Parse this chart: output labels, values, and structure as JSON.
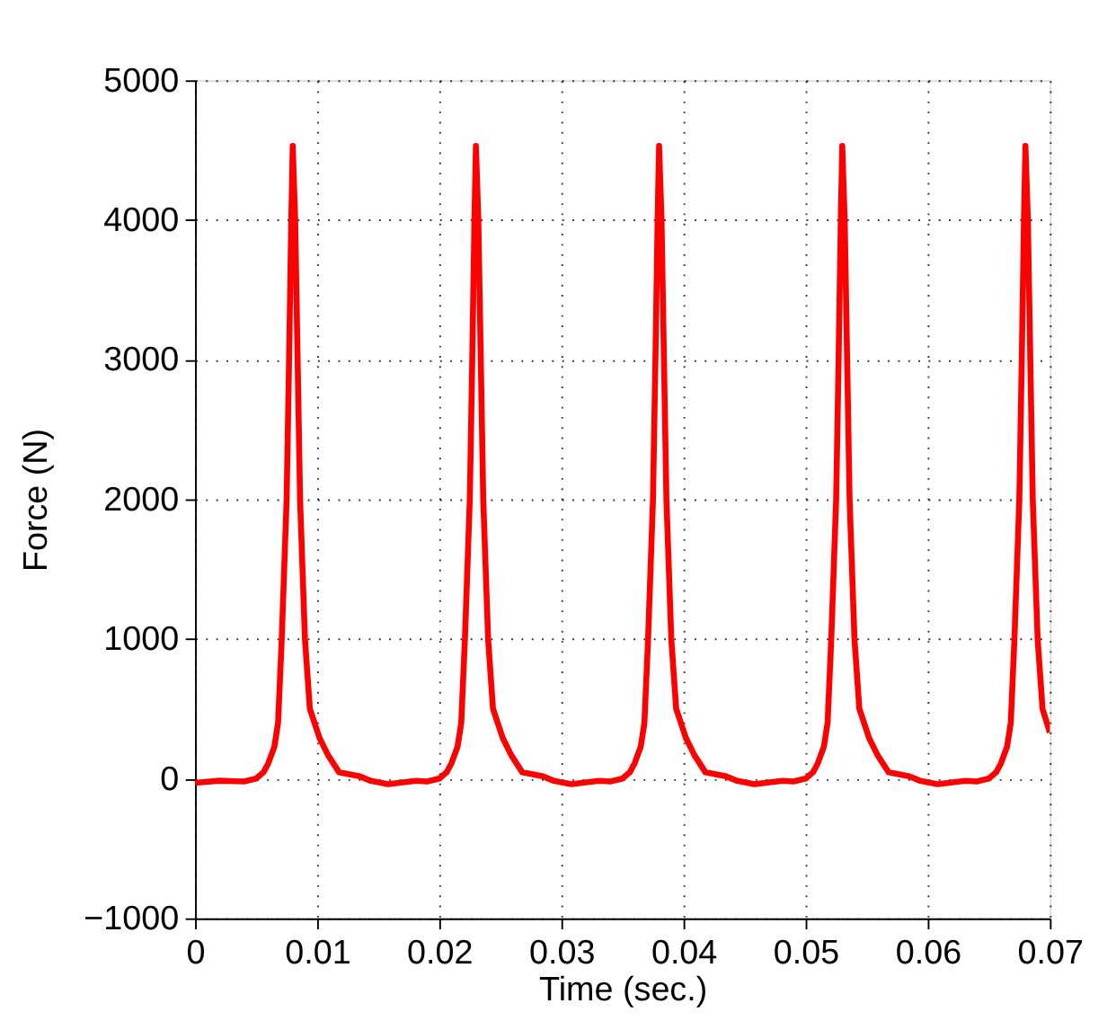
{
  "chart_data": {
    "type": "line",
    "xlabel": "Time (sec.)",
    "ylabel": "Force (N)",
    "xlim": [
      0,
      0.07
    ],
    "xticks": [
      0,
      0.01,
      0.02,
      0.03,
      0.04,
      0.05,
      0.06,
      0.07
    ],
    "ylim": [
      -1000,
      5000
    ],
    "yticks": [
      -1000,
      0,
      1000,
      2000,
      3000,
      4000,
      5000
    ],
    "grid": true,
    "line_style": "solid",
    "marker": "none",
    "series": [
      {
        "color": "#ff0000",
        "x": [
          0,
          0.002,
          0.004,
          0.005,
          0.0056,
          0.006,
          0.0065,
          0.0068,
          0.0071,
          0.0075,
          0.0077,
          0.00788,
          0.008,
          0.0082,
          0.0084,
          0.0086,
          0.009,
          0.0094,
          0.0102,
          0.0109,
          0.0118,
          0.0135,
          0.0144,
          0.0158,
          0.0181,
          0.019,
          0.02,
          0.0206,
          0.021,
          0.0215,
          0.0218,
          0.0221,
          0.0225,
          0.0227,
          0.02288,
          0.023,
          0.0232,
          0.0234,
          0.0236,
          0.024,
          0.0244,
          0.0252,
          0.0259,
          0.0268,
          0.0285,
          0.0294,
          0.0308,
          0.0331,
          0.034,
          0.035,
          0.0356,
          0.036,
          0.0365,
          0.0368,
          0.0371,
          0.0375,
          0.0377,
          0.03788,
          0.038,
          0.0382,
          0.0384,
          0.0386,
          0.039,
          0.0394,
          0.0402,
          0.0409,
          0.0418,
          0.0435,
          0.0444,
          0.0458,
          0.0481,
          0.049,
          0.05,
          0.0506,
          0.051,
          0.0515,
          0.0518,
          0.0521,
          0.0525,
          0.0527,
          0.05288,
          0.053,
          0.0532,
          0.0534,
          0.0536,
          0.054,
          0.0544,
          0.0552,
          0.0559,
          0.0568,
          0.0585,
          0.0594,
          0.0608,
          0.0631,
          0.064,
          0.065,
          0.0656,
          0.066,
          0.0665,
          0.0668,
          0.0671,
          0.0675,
          0.0677,
          0.06788,
          0.068,
          0.0682,
          0.0684,
          0.0686,
          0.069,
          0.0694,
          0.07
        ],
        "values": [
          -30,
          -15,
          -20,
          0,
          45,
          110,
          230,
          400,
          1000,
          2000,
          3000,
          4000,
          4530,
          4000,
          3000,
          2000,
          1000,
          500,
          290,
          167,
          45,
          16,
          -16,
          -40,
          -16,
          -20,
          0,
          45,
          110,
          230,
          400,
          1000,
          2000,
          3000,
          4000,
          4530,
          4000,
          3000,
          2000,
          1000,
          500,
          290,
          167,
          45,
          16,
          -16,
          -40,
          -16,
          -20,
          0,
          45,
          110,
          230,
          400,
          1000,
          2000,
          3000,
          4000,
          4530,
          4000,
          3000,
          2000,
          1000,
          500,
          290,
          167,
          45,
          16,
          -16,
          -40,
          -16,
          -20,
          0,
          45,
          110,
          230,
          400,
          1000,
          2000,
          3000,
          4000,
          4530,
          4000,
          3000,
          2000,
          1000,
          500,
          290,
          167,
          45,
          16,
          -16,
          -40,
          -16,
          -20,
          0,
          45,
          110,
          230,
          400,
          1000,
          2000,
          3000,
          4000,
          4530,
          4000,
          3000,
          2000,
          1000,
          500,
          330
        ]
      }
    ]
  }
}
